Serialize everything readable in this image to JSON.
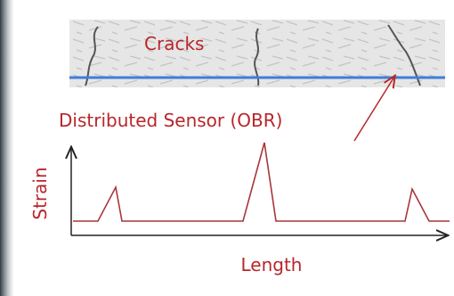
{
  "diagram": {
    "cracks_label": "Cracks",
    "sensor_label": "Distributed Sensor (OBR)",
    "y_axis_label": "Strain",
    "x_axis_label": "Length"
  }
}
